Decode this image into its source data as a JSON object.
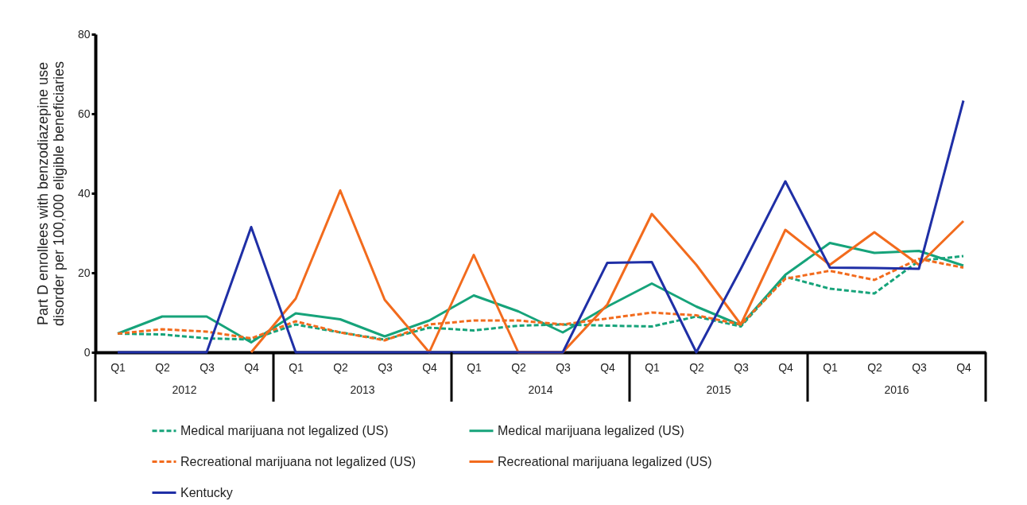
{
  "chart_data": {
    "type": "line",
    "ylabel": "Part D enrollees with benzodiazepine use disorder per 100,000 eligible beneficiaries",
    "categories": [
      "Q1",
      "Q2",
      "Q3",
      "Q4",
      "Q1",
      "Q2",
      "Q3",
      "Q4",
      "Q1",
      "Q2",
      "Q3",
      "Q4",
      "Q1",
      "Q2",
      "Q3",
      "Q4",
      "Q1",
      "Q2",
      "Q3",
      "Q4"
    ],
    "annotations": [
      "2012",
      "2013",
      "2014",
      "2015",
      "2016"
    ],
    "ylim": [
      0,
      80
    ],
    "yticks": [
      0,
      20,
      40,
      60,
      80
    ],
    "grid": false,
    "legend": "bottom",
    "series": [
      {
        "name": "Medical marijuana not legalized (US)",
        "color": "#16a37a",
        "line_style": "dashed",
        "values": [
          4.7,
          4.5,
          3.5,
          3.2,
          7,
          5,
          3.2,
          6.2,
          5.5,
          6.7,
          7,
          6.7,
          6.5,
          9,
          6.5,
          19,
          16,
          14.8,
          23,
          24.2
        ]
      },
      {
        "name": "Medical marijuana legalized (US)",
        "color": "#16a37a",
        "line_style": "solid",
        "values": [
          4.7,
          9,
          9,
          2.5,
          9.8,
          8.3,
          4,
          8,
          14.3,
          10.3,
          5,
          11.5,
          17.3,
          11.5,
          6.8,
          19.5,
          27.5,
          25,
          25.5,
          21.8
        ]
      },
      {
        "name": "Recreational marijuana not legalized (US)",
        "color": "#f26b1d",
        "line_style": "dashed",
        "values": [
          4.7,
          5.8,
          5.2,
          3.5,
          7.8,
          5,
          3,
          7,
          8,
          8,
          7,
          8.5,
          10,
          9.3,
          7,
          18.5,
          20.5,
          18.2,
          23.5,
          21.3
        ]
      },
      {
        "name": "Recreational marijuana legalized (US)",
        "color": "#f26b1d",
        "line_style": "solid",
        "values": [
          null,
          null,
          null,
          0,
          13.5,
          40.7,
          13.2,
          0,
          24.5,
          0,
          0,
          12,
          34.8,
          22,
          7,
          30.8,
          22,
          30.2,
          22,
          33
        ]
      },
      {
        "name": "Kentucky",
        "color": "#1f2fa6",
        "line_style": "solid",
        "values": [
          0,
          0,
          0,
          31.5,
          0,
          0,
          0,
          0,
          0,
          0,
          0,
          22.5,
          22.7,
          0,
          21,
          43,
          21.3,
          21.2,
          21,
          63.3
        ]
      }
    ]
  }
}
